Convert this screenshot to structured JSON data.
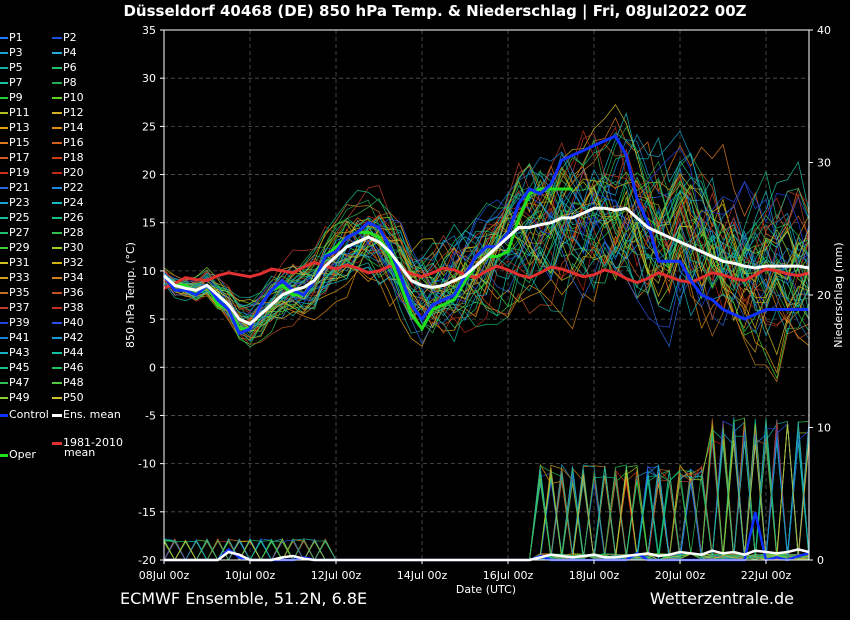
{
  "title": "Düsseldorf 40468 (DE)  850 hPa Temp. & Niederschlag | Fri, 08Jul2022 00Z",
  "footer_left": "ECMWF Ensemble, 51.2N, 6.8E",
  "footer_right": "Wetterzentrale.de",
  "legend": {
    "members": [
      "P1",
      "P2",
      "P3",
      "P4",
      "P5",
      "P6",
      "P7",
      "P8",
      "P9",
      "P10",
      "P11",
      "P12",
      "P13",
      "P14",
      "P15",
      "P16",
      "P17",
      "P18",
      "P19",
      "P20",
      "P21",
      "P22",
      "P23",
      "P24",
      "P25",
      "P26",
      "P27",
      "P28",
      "P29",
      "P30",
      "P31",
      "P32",
      "P33",
      "P34",
      "P35",
      "P36",
      "P37",
      "P38",
      "P39",
      "P40",
      "P41",
      "P42",
      "P43",
      "P44",
      "P45",
      "P46",
      "P47",
      "P48",
      "P49",
      "P50"
    ],
    "member_colors": [
      "#1f77ff",
      "#1b4fd6",
      "#1aa0d0",
      "#22aad8",
      "#14b0a0",
      "#20c070",
      "#18c0a0",
      "#22aa55",
      "#1fcf3a",
      "#60d020",
      "#b0c020",
      "#d0b020",
      "#e0a010",
      "#e08a10",
      "#e07a20",
      "#d06018",
      "#d05a20",
      "#c84018",
      "#d03020",
      "#c02818",
      "#2a6ae0",
      "#1a8ae0",
      "#18a0d0",
      "#1ab8c0",
      "#10c0a0",
      "#10c088",
      "#20c070",
      "#30c050",
      "#40d040",
      "#a0d020",
      "#d0c020",
      "#d0b010",
      "#d0a020",
      "#d08020",
      "#c07020",
      "#c05020",
      "#c04030",
      "#c03020",
      "#2040e0",
      "#2a50e8",
      "#1a80d0",
      "#1a9ad8",
      "#16b0c0",
      "#12c0a0",
      "#18c088",
      "#20c060",
      "#30c050",
      "#50c840",
      "#90d030",
      "#d0c030"
    ],
    "control": "Control",
    "ens_mean": "Ens. mean",
    "oper": "Oper",
    "climate": "1981-2010 mean",
    "climate_line1": "1981-2010",
    "climate_line2": "mean"
  },
  "colors": {
    "background": "#000000",
    "control": "#1030ff",
    "ens_mean": "#ffffff",
    "oper": "#20e020",
    "climate": "#e03030",
    "grid": "#555555"
  },
  "chart_data": {
    "type": "line",
    "title": "Düsseldorf 40468 (DE)  850 hPa Temp. & Niederschlag | Fri, 08Jul2022 00Z",
    "xlabel": "Date (UTC)",
    "ylabel": "850 hPa Temp. (°C)",
    "y2label": "Niederschlag (mm)",
    "x_unit": "hours since 08Jul 00z",
    "x_range": [
      0,
      360
    ],
    "x_ticks": [
      0,
      48,
      96,
      144,
      192,
      240,
      288,
      336
    ],
    "x_tick_labels": [
      "08Jul 00z",
      "10Jul 00z",
      "12Jul 00z",
      "14Jul 00z",
      "16Jul 00z",
      "18Jul 00z",
      "20Jul 00z",
      "22Jul 00z"
    ],
    "ylim": [
      -20,
      35
    ],
    "y_ticks": [
      -20,
      -15,
      -10,
      -5,
      0,
      5,
      10,
      15,
      20,
      25,
      30,
      35
    ],
    "y2lim": [
      0,
      40
    ],
    "y2_ticks": [
      0,
      10,
      20,
      30,
      40
    ],
    "grid": true,
    "x_step_hours": 6,
    "series": [
      {
        "name": "Ens. mean",
        "values": [
          9.5,
          8.5,
          8.2,
          8.0,
          8.5,
          7.5,
          6.5,
          5.0,
          4.5,
          5.5,
          6.5,
          7.5,
          8.0,
          8.3,
          9.0,
          10.5,
          11.5,
          12.5,
          13.0,
          13.5,
          13.0,
          12.0,
          10.5,
          9.0,
          8.5,
          8.3,
          8.5,
          9.0,
          9.5,
          10.5,
          11.5,
          12.5,
          13.5,
          14.5,
          14.5,
          14.8,
          15.0,
          15.5,
          15.5,
          16.0,
          16.5,
          16.5,
          16.3,
          16.5,
          15.5,
          14.5,
          14.0,
          13.5,
          13.0,
          12.5,
          12.0,
          11.5,
          11.0,
          10.8,
          10.5,
          10.3,
          10.5,
          10.5,
          10.5,
          10.5,
          10.3
        ]
      },
      {
        "name": "Control",
        "values": [
          9.5,
          8.0,
          8.0,
          7.5,
          8.5,
          7.0,
          6.0,
          3.5,
          4.0,
          6.5,
          8.0,
          9.0,
          8.0,
          7.5,
          9.0,
          11.5,
          12.0,
          13.5,
          14.0,
          15.0,
          14.5,
          12.5,
          9.5,
          6.5,
          5.0,
          6.5,
          7.0,
          7.5,
          9.5,
          11.5,
          12.5,
          12.5,
          14.0,
          17.0,
          18.5,
          18.0,
          19.0,
          21.5,
          22.0,
          22.5,
          23.0,
          23.5,
          24.0,
          22.0,
          17.5,
          15.0,
          11.0,
          11.0,
          11.0,
          9.0,
          7.5,
          7.0,
          6.0,
          5.5,
          5.0,
          5.5,
          6.0,
          6.0,
          6.0,
          6.0,
          6.0
        ]
      },
      {
        "name": "Oper",
        "values": [
          9.5,
          8.5,
          8.5,
          7.5,
          8.5,
          6.5,
          6.0,
          4.0,
          4.0,
          6.5,
          8.0,
          8.5,
          7.5,
          7.5,
          9.0,
          11.5,
          12.5,
          13.5,
          14.0,
          14.0,
          13.5,
          11.5,
          8.5,
          5.5,
          4.0,
          6.0,
          6.5,
          7.0,
          9.0,
          10.5,
          11.5,
          11.5,
          12.0,
          15.5,
          18.0,
          18.5,
          18.5,
          18.5,
          18.5
        ]
      },
      {
        "name": "1981-2010 mean",
        "values": [
          8.2,
          8.7,
          9.3,
          9.1,
          9.0,
          9.5,
          9.8,
          9.6,
          9.4,
          9.7,
          10.2,
          10.0,
          9.8,
          10.4,
          10.9,
          10.5,
          10.2,
          10.6,
          10.3,
          9.8,
          10.0,
          10.5,
          10.2,
          9.7,
          9.4,
          9.8,
          10.3,
          10.1,
          9.6,
          9.3,
          10.0,
          10.5,
          10.1,
          9.6,
          9.3,
          9.8,
          10.4,
          10.2,
          9.8,
          9.4,
          9.6,
          10.1,
          9.8,
          9.2,
          8.8,
          9.2,
          9.8,
          9.4,
          9.0,
          8.8,
          9.3,
          9.8,
          9.6,
          9.2,
          9.0,
          9.6,
          10.2,
          10.0,
          9.7,
          9.5,
          9.8
        ]
      }
    ],
    "precip_series": [
      {
        "name": "Control",
        "values": [
          0,
          0,
          0,
          0,
          0,
          0,
          0.8,
          0.2,
          0,
          0,
          0,
          0,
          0,
          0.2,
          0,
          0,
          0,
          0,
          0,
          0,
          0,
          0,
          0,
          0,
          0,
          0,
          0,
          0,
          0,
          0,
          0,
          0,
          0,
          0,
          0,
          0.3,
          0,
          0,
          0,
          0,
          0,
          0,
          0,
          0,
          0.5,
          0,
          0,
          0,
          0,
          0,
          0,
          0,
          0,
          0,
          0,
          3.6,
          0,
          0.2,
          0,
          0.3,
          0.5
        ]
      },
      {
        "name": "Ens. mean",
        "values": [
          0,
          0,
          0,
          0,
          0,
          0,
          0.6,
          0.4,
          0,
          0,
          0,
          0.2,
          0.3,
          0.1,
          0,
          0,
          0,
          0,
          0,
          0,
          0,
          0,
          0,
          0,
          0,
          0,
          0,
          0,
          0,
          0,
          0,
          0,
          0,
          0,
          0,
          0.2,
          0.4,
          0.3,
          0.2,
          0.3,
          0.4,
          0.2,
          0.2,
          0.3,
          0.4,
          0.5,
          0.3,
          0.4,
          0.6,
          0.5,
          0.4,
          0.7,
          0.5,
          0.6,
          0.4,
          0.7,
          0.6,
          0.5,
          0.6,
          0.8,
          0.6
        ]
      }
    ],
    "ensemble_envelope": {
      "description": "50 perturbed members spread around the ensemble mean",
      "max_temp_spread": 9
    }
  }
}
